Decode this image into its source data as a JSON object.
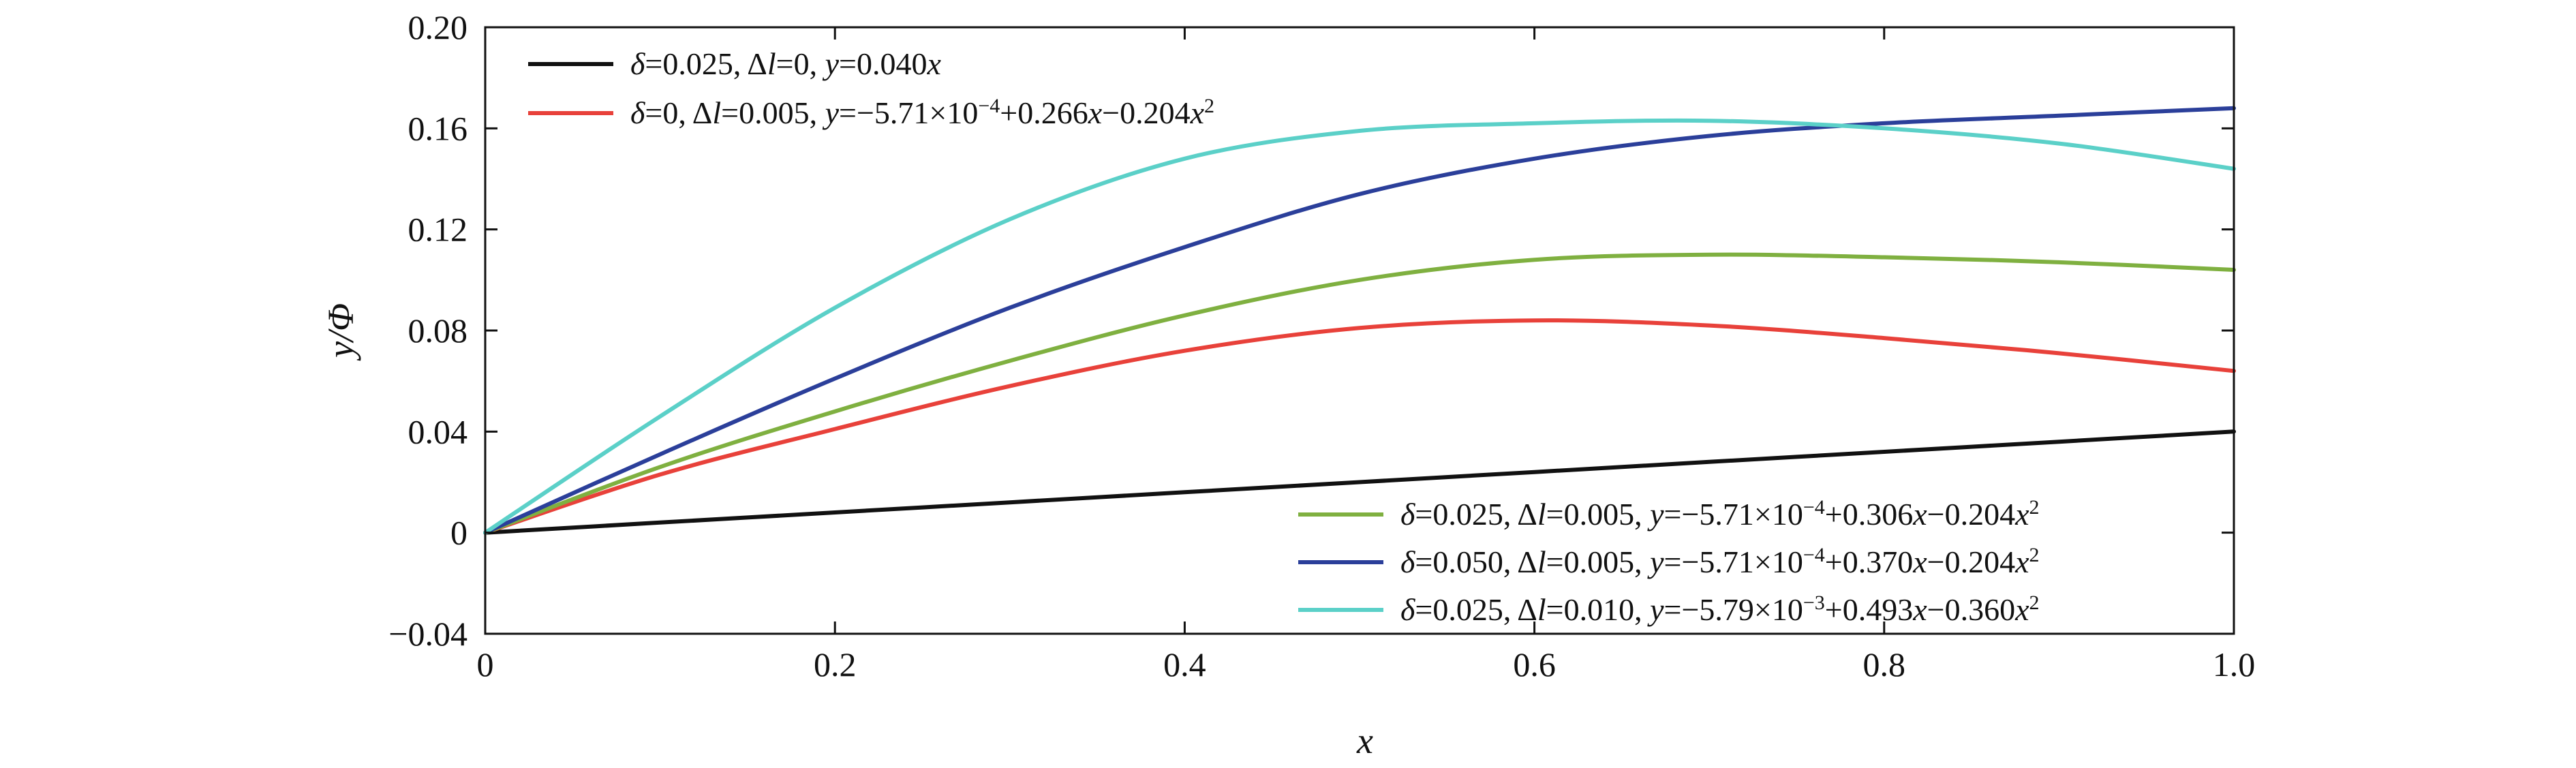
{
  "chart_data": {
    "type": "line",
    "xlabel": "x",
    "ylabel": "y/Φ",
    "xlim": [
      0,
      1.0
    ],
    "ylim": [
      -0.04,
      0.2
    ],
    "x_ticks": [
      "0",
      "0.2",
      "0.4",
      "0.6",
      "0.8",
      "1.0"
    ],
    "y_ticks": [
      "−0.04",
      "0",
      "0.04",
      "0.08",
      "0.12",
      "0.16",
      "0.20"
    ],
    "x_tick_values": [
      0,
      0.2,
      0.4,
      0.6,
      0.8,
      1.0
    ],
    "y_tick_values": [
      -0.04,
      0,
      0.04,
      0.08,
      0.12,
      0.16,
      0.2
    ],
    "grid": false,
    "x": [
      0,
      0.1,
      0.2,
      0.3,
      0.4,
      0.5,
      0.6,
      0.7,
      0.8,
      0.9,
      1.0
    ],
    "series": [
      {
        "name": "δ=0.025, Δl=0, y=0.040x",
        "color": "#111111",
        "values": [
          0,
          0.004,
          0.008,
          0.012,
          0.016,
          0.02,
          0.024,
          0.028,
          0.032,
          0.036,
          0.04
        ]
      },
      {
        "name": "δ=0, Δl=0.005, y=−5.71×10⁻⁴+0.266x−0.204x²",
        "color": "#e8413a",
        "values": [
          0,
          0.023,
          0.041,
          0.058,
          0.072,
          0.081,
          0.084,
          0.082,
          0.077,
          0.071,
          0.064
        ]
      },
      {
        "name": "δ=0.025, Δl=0.005, y=−5.71×10⁻⁴+0.306x−0.204x²",
        "color": "#7fb040",
        "values": [
          0,
          0.026,
          0.048,
          0.068,
          0.086,
          0.1,
          0.108,
          0.11,
          0.109,
          0.107,
          0.104
        ]
      },
      {
        "name": "δ=0.050, Δl=0.005, y=−5.71×10⁻⁴+0.370x−0.204x²",
        "color": "#2b3f9a",
        "values": [
          0,
          0.031,
          0.061,
          0.089,
          0.113,
          0.134,
          0.148,
          0.157,
          0.162,
          0.165,
          0.168
        ]
      },
      {
        "name": "δ=0.025, Δl=0.010, y=−5.79×10⁻³+0.493x−0.360x²",
        "color": "#5bd0c8",
        "values": [
          0,
          0.046,
          0.089,
          0.124,
          0.148,
          0.159,
          0.162,
          0.163,
          0.16,
          0.154,
          0.144
        ]
      }
    ],
    "legends": [
      {
        "position": "top-left",
        "entries": [
          {
            "series": 0,
            "parts": [
              [
                "δ",
                "i"
              ],
              [
                "=0.025, ",
                "n"
              ],
              [
                "Δ",
                "n"
              ],
              [
                "l",
                "i"
              ],
              [
                "=0, ",
                "n"
              ],
              [
                "y",
                "i"
              ],
              [
                "=0.040",
                "n"
              ],
              [
                "x",
                "i"
              ]
            ]
          },
          {
            "series": 1,
            "parts": [
              [
                "δ",
                "i"
              ],
              [
                "=0, ",
                "n"
              ],
              [
                "Δ",
                "n"
              ],
              [
                "l",
                "i"
              ],
              [
                "=0.005, ",
                "n"
              ],
              [
                "y",
                "i"
              ],
              [
                "=−5.71×10",
                "n"
              ],
              [
                "−4",
                "sup"
              ],
              [
                "+0.266",
                "n"
              ],
              [
                "x",
                "i"
              ],
              [
                "−0.204",
                "n"
              ],
              [
                "x",
                "i"
              ],
              [
                "2",
                "sup"
              ]
            ]
          }
        ]
      },
      {
        "position": "bottom-right",
        "entries": [
          {
            "series": 2,
            "parts": [
              [
                "δ",
                "i"
              ],
              [
                "=0.025, ",
                "n"
              ],
              [
                "Δ",
                "n"
              ],
              [
                "l",
                "i"
              ],
              [
                "=0.005, ",
                "n"
              ],
              [
                "y",
                "i"
              ],
              [
                "=−5.71×10",
                "n"
              ],
              [
                "−4",
                "sup"
              ],
              [
                "+0.306",
                "n"
              ],
              [
                "x",
                "i"
              ],
              [
                "−0.204",
                "n"
              ],
              [
                "x",
                "i"
              ],
              [
                "2",
                "sup"
              ]
            ]
          },
          {
            "series": 3,
            "parts": [
              [
                "δ",
                "i"
              ],
              [
                "=0.050, ",
                "n"
              ],
              [
                "Δ",
                "n"
              ],
              [
                "l",
                "i"
              ],
              [
                "=0.005, ",
                "n"
              ],
              [
                "y",
                "i"
              ],
              [
                "=−5.71×10",
                "n"
              ],
              [
                "−4",
                "sup"
              ],
              [
                "+0.370",
                "n"
              ],
              [
                "x",
                "i"
              ],
              [
                "−0.204",
                "n"
              ],
              [
                "x",
                "i"
              ],
              [
                "2",
                "sup"
              ]
            ]
          },
          {
            "series": 4,
            "parts": [
              [
                "δ",
                "i"
              ],
              [
                "=0.025, ",
                "n"
              ],
              [
                "Δ",
                "n"
              ],
              [
                "l",
                "i"
              ],
              [
                "=0.010, ",
                "n"
              ],
              [
                "y",
                "i"
              ],
              [
                "=−5.79×10",
                "n"
              ],
              [
                "−3",
                "sup"
              ],
              [
                "+0.493",
                "n"
              ],
              [
                "x",
                "i"
              ],
              [
                "−0.360",
                "n"
              ],
              [
                "x",
                "i"
              ],
              [
                "2",
                "sup"
              ]
            ]
          }
        ]
      }
    ]
  }
}
